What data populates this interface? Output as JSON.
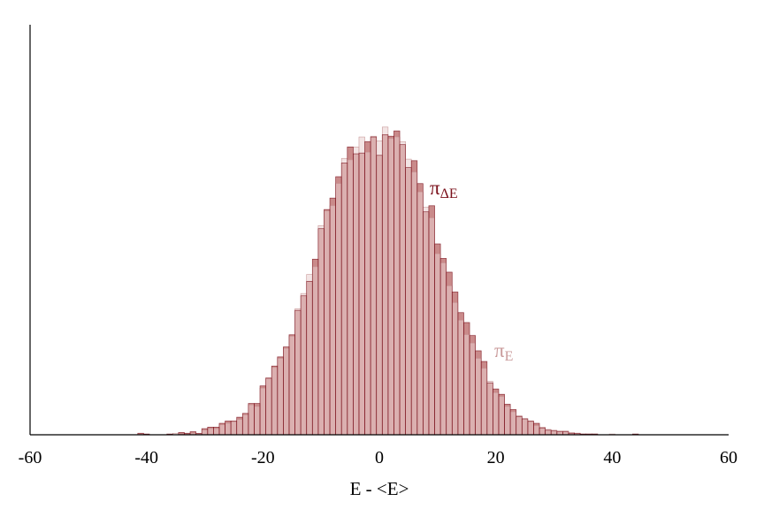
{
  "chart_data": {
    "type": "bar",
    "xlabel": "E - <E>",
    "ylabel": "",
    "title": "",
    "xlim": [
      -60,
      60
    ],
    "ylim": [
      0,
      1.0
    ],
    "xticks": [
      "-60",
      "-40",
      "-20",
      "0",
      "20",
      "40",
      "60"
    ],
    "grid": false,
    "bin_width": 1,
    "series": [
      {
        "name": "π_ΔE",
        "label_main": "π",
        "label_sub": "ΔE",
        "color": "#7a0f1a",
        "fill": "#c98a8a",
        "x": [
          -41,
          -40,
          -39,
          -38,
          -37,
          -36,
          -35,
          -34,
          -33,
          -32,
          -31,
          -30,
          -29,
          -28,
          -27,
          -26,
          -25,
          -24,
          -23,
          -22,
          -21,
          -20,
          -19,
          -18,
          -17,
          -16,
          -15,
          -14,
          -13,
          -12,
          -11,
          -10,
          -9,
          -8,
          -7,
          -6,
          -5,
          -4,
          -3,
          -2,
          -1,
          0,
          1,
          2,
          3,
          4,
          5,
          6,
          7,
          8,
          9,
          10,
          11,
          12,
          13,
          14,
          15,
          16,
          17,
          18,
          19,
          20,
          21,
          22,
          23,
          24,
          25,
          26,
          27,
          28,
          29,
          30,
          31,
          32,
          33,
          34,
          35,
          36,
          37,
          38,
          39,
          40,
          41,
          42,
          43,
          44,
          45,
          46
        ],
        "values": [
          0.004,
          0.002,
          0.0,
          0.0,
          0.0,
          0.002,
          0.0,
          0.006,
          0.004,
          0.008,
          0.003,
          0.016,
          0.02,
          0.02,
          0.03,
          0.036,
          0.036,
          0.046,
          0.056,
          0.082,
          0.082,
          0.128,
          0.148,
          0.18,
          0.204,
          0.23,
          0.262,
          0.326,
          0.364,
          0.402,
          0.46,
          0.54,
          0.59,
          0.62,
          0.676,
          0.712,
          0.754,
          0.736,
          0.738,
          0.768,
          0.78,
          0.732,
          0.786,
          0.782,
          0.796,
          0.76,
          0.7,
          0.718,
          0.658,
          0.584,
          0.6,
          0.5,
          0.462,
          0.426,
          0.374,
          0.32,
          0.294,
          0.26,
          0.22,
          0.192,
          0.136,
          0.12,
          0.106,
          0.08,
          0.066,
          0.048,
          0.042,
          0.036,
          0.03,
          0.018,
          0.012,
          0.01,
          0.008,
          0.008,
          0.004,
          0.004,
          0.002,
          0.002,
          0.002,
          0.0,
          0.0,
          0.0,
          0.0,
          0.0,
          0.0,
          0.002,
          0.0,
          0.0
        ]
      },
      {
        "name": "π_E",
        "label_main": "π",
        "label_sub": "E",
        "color": "#c99a9a",
        "fill": "#e9cfcf",
        "x": [
          -41,
          -40,
          -39,
          -38,
          -37,
          -36,
          -35,
          -34,
          -33,
          -32,
          -31,
          -30,
          -29,
          -28,
          -27,
          -26,
          -25,
          -24,
          -23,
          -22,
          -21,
          -20,
          -19,
          -18,
          -17,
          -16,
          -15,
          -14,
          -13,
          -12,
          -11,
          -10,
          -9,
          -8,
          -7,
          -6,
          -5,
          -4,
          -3,
          -2,
          -1,
          0,
          1,
          2,
          3,
          4,
          5,
          6,
          7,
          8,
          9,
          10,
          11,
          12,
          13,
          14,
          15,
          16,
          17,
          18,
          19,
          20,
          21,
          22,
          23,
          24,
          25,
          26,
          27,
          28,
          29,
          30,
          31,
          32,
          33,
          34,
          35,
          36,
          37,
          38,
          39,
          40,
          41,
          42,
          43,
          44,
          45,
          46
        ],
        "values": [
          0.0,
          0.0,
          0.0,
          0.0,
          0.0,
          0.0,
          0.004,
          0.0,
          0.0,
          0.004,
          0.004,
          0.012,
          0.016,
          0.016,
          0.026,
          0.03,
          0.034,
          0.04,
          0.052,
          0.078,
          0.074,
          0.122,
          0.15,
          0.176,
          0.2,
          0.226,
          0.258,
          0.33,
          0.37,
          0.42,
          0.44,
          0.548,
          0.586,
          0.6,
          0.658,
          0.724,
          0.72,
          0.754,
          0.78,
          0.74,
          0.782,
          0.77,
          0.806,
          0.776,
          0.78,
          0.768,
          0.722,
          0.688,
          0.636,
          0.596,
          0.568,
          0.474,
          0.45,
          0.39,
          0.346,
          0.3,
          0.262,
          0.24,
          0.2,
          0.174,
          0.14,
          0.11,
          0.1,
          0.074,
          0.06,
          0.05,
          0.04,
          0.034,
          0.024,
          0.02,
          0.014,
          0.012,
          0.01,
          0.01,
          0.006,
          0.004,
          0.002,
          0.002,
          0.002,
          0.0,
          0.0,
          0.002,
          0.0,
          0.0,
          0.0,
          0.0,
          0.0,
          0.0
        ]
      }
    ]
  }
}
